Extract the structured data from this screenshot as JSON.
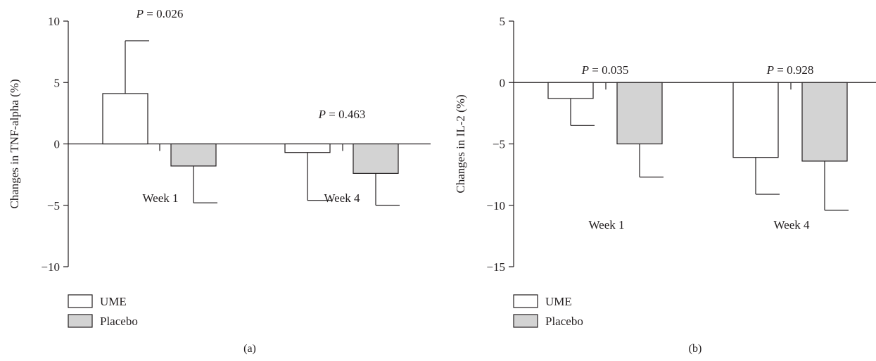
{
  "chart_data": [
    {
      "type": "bar",
      "panel_label": "(a)",
      "ylabel": "Changes in TNF-alpha (%)",
      "ylim": [
        -10,
        10
      ],
      "yticks": [
        10,
        5,
        0,
        -5,
        -10
      ],
      "ytick_labels": [
        "10",
        "5",
        "0",
        "−5",
        "−10"
      ],
      "categories": [
        "Week 1",
        "Week 4"
      ],
      "series": [
        {
          "name": "UME",
          "values": [
            4.1,
            -0.7
          ],
          "error": [
            4.3,
            3.9
          ],
          "color": "#ffffff"
        },
        {
          "name": "Placebo",
          "values": [
            -1.8,
            -2.4
          ],
          "error": [
            3.0,
            2.6
          ],
          "color": "#d3d3d3"
        }
      ],
      "annotations": [
        {
          "category": "Week 1",
          "p_symbol": "P",
          "p_text": " = 0.026"
        },
        {
          "category": "Week 4",
          "p_symbol": "P",
          "p_text": " = 0.463"
        }
      ],
      "legend": "bottom-left",
      "grid": false
    },
    {
      "type": "bar",
      "panel_label": "(b)",
      "ylabel": "Changes in IL-2 (%)",
      "ylim": [
        -15,
        5
      ],
      "yticks": [
        5,
        0,
        -5,
        -10,
        -15
      ],
      "ytick_labels": [
        "5",
        "0",
        "−5",
        "−10",
        "−15"
      ],
      "categories": [
        "Week 1",
        "Week 4"
      ],
      "series": [
        {
          "name": "UME",
          "values": [
            -1.3,
            -6.1
          ],
          "error": [
            2.2,
            3.0
          ],
          "color": "#ffffff"
        },
        {
          "name": "Placebo",
          "values": [
            -5.0,
            -6.4
          ],
          "error": [
            2.7,
            4.0
          ],
          "color": "#d3d3d3"
        }
      ],
      "annotations": [
        {
          "category": "Week 1",
          "p_symbol": "P",
          "p_text": " = 0.035"
        },
        {
          "category": "Week 4",
          "p_symbol": "P",
          "p_text": " = 0.928"
        }
      ],
      "legend": "bottom-left",
      "grid": false
    }
  ]
}
